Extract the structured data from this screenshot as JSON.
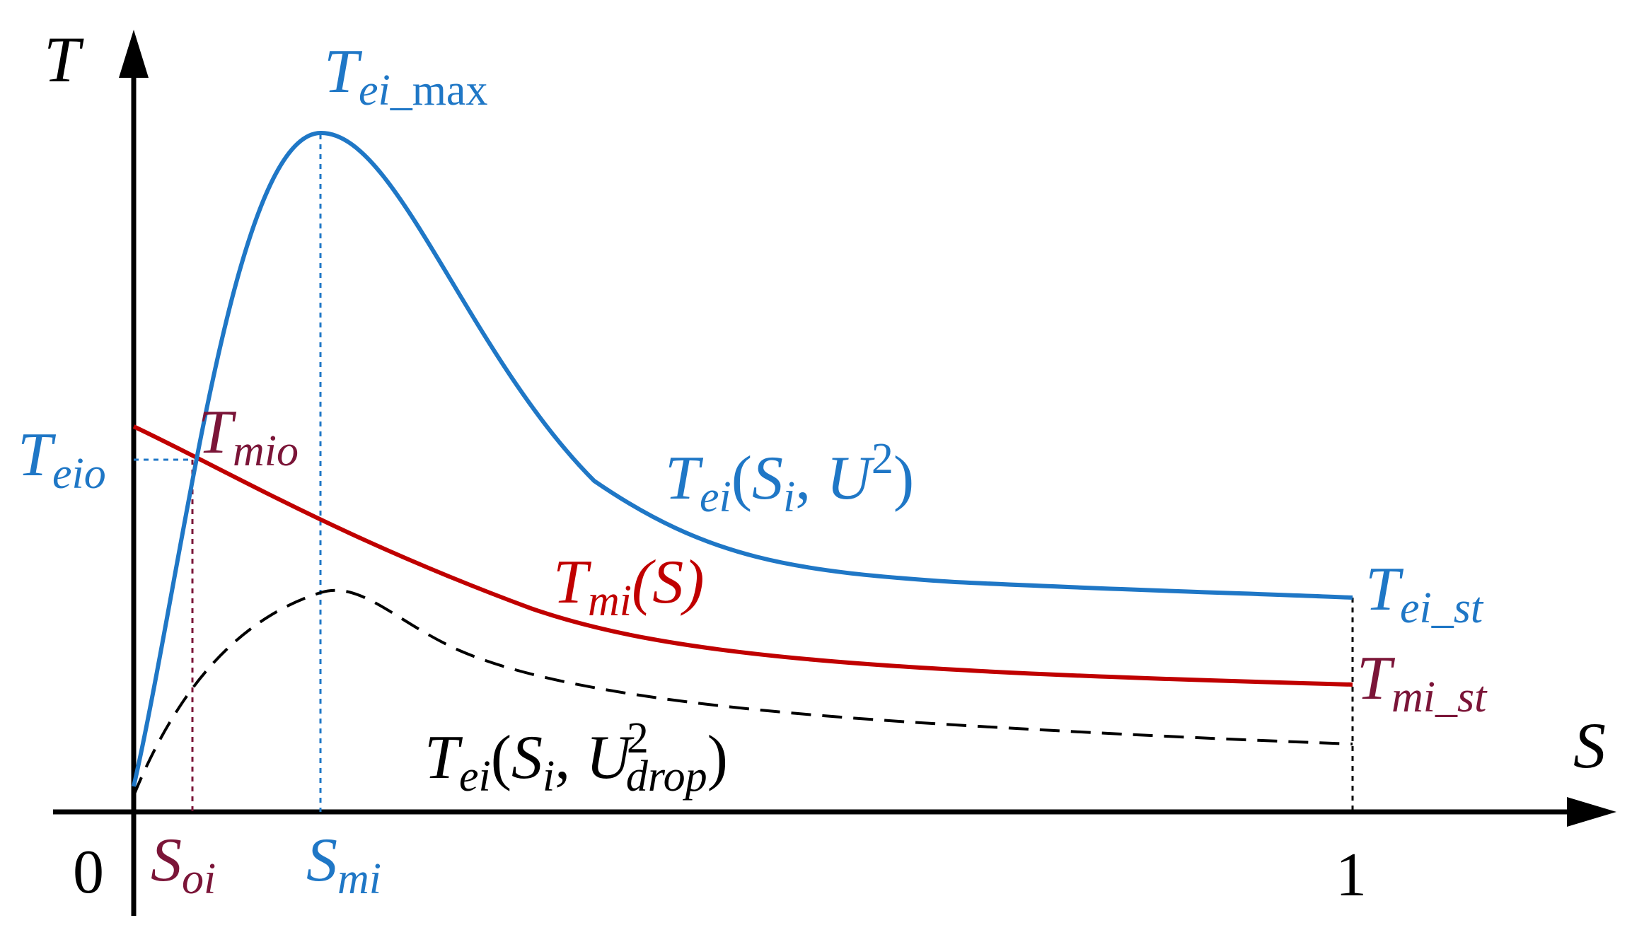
{
  "colors": {
    "axis": "#000000",
    "blue": "#1f77c6",
    "red": "#c00000",
    "maroon": "#7b1538",
    "dashed": "#000000"
  },
  "axes": {
    "y_label": "T",
    "x_label": "S",
    "origin": "0",
    "x_end_tick": "1"
  },
  "labels": {
    "tei_max": {
      "base": "T",
      "sub": "ei",
      "tail": "_max"
    },
    "tei_curve": {
      "base": "T",
      "sub": "ei",
      "open": "(",
      "s": "S",
      "s_sub": "i",
      "comma": ",",
      "u": "U",
      "sup": "2",
      "close": ")"
    },
    "tmi_curve": {
      "base": "T",
      "sub": "mi",
      "arg": "(S)"
    },
    "tei_drop": {
      "base": "T",
      "sub": "ei",
      "open": "(",
      "s": "S",
      "s_sub": "i",
      "comma": ",",
      "u": "U",
      "sup": "2",
      "u_sub": "drop",
      "close": ")"
    },
    "tei_st": {
      "base": "T",
      "sub": "ei_st"
    },
    "tmi_st": {
      "base": "T",
      "sub": "mi_st"
    },
    "teio": {
      "base": "T",
      "sub": "eio"
    },
    "tmio": {
      "base": "T",
      "sub": "mio"
    },
    "soi": {
      "base": "S",
      "sub": "oi"
    },
    "smi": {
      "base": "S",
      "sub": "mi"
    }
  }
}
